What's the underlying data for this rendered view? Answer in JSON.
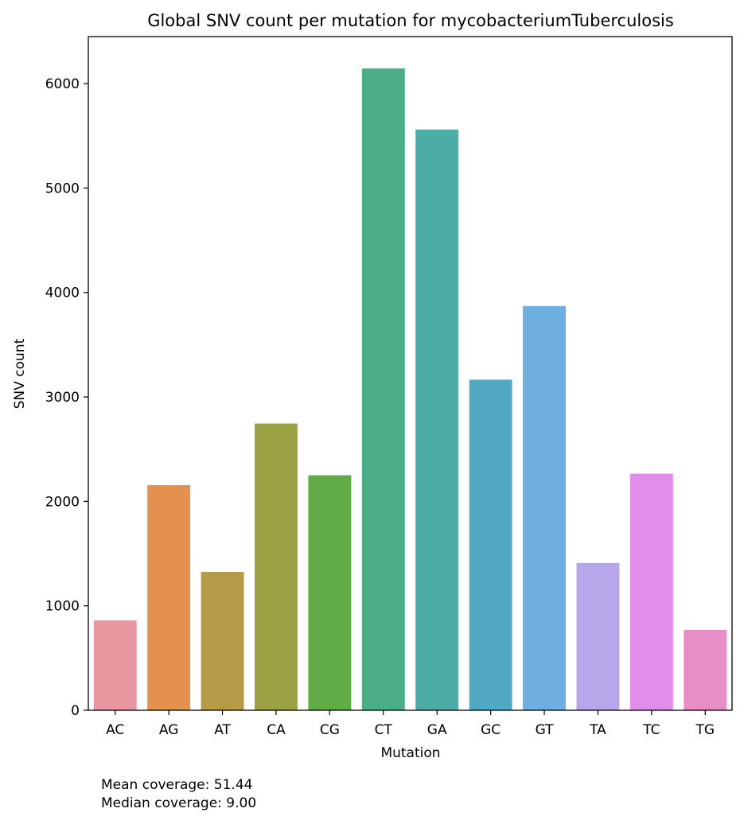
{
  "chart_data": {
    "type": "bar",
    "title": "Global SNV count per mutation for mycobacteriumTuberculosis",
    "xlabel": "Mutation",
    "ylabel": "SNV count",
    "categories": [
      "AC",
      "AG",
      "AT",
      "CA",
      "CG",
      "CT",
      "GA",
      "GC",
      "GT",
      "TA",
      "TC",
      "TG"
    ],
    "values": [
      860,
      2155,
      1325,
      2745,
      2250,
      6145,
      5560,
      3165,
      3870,
      1410,
      2265,
      770
    ],
    "colors": [
      "#e8969f",
      "#e4914f",
      "#b59a48",
      "#9ba345",
      "#62ac47",
      "#4bae88",
      "#4cada6",
      "#50a8c1",
      "#6eaee1",
      "#b7a7ea",
      "#e08ee9",
      "#e78ec6"
    ],
    "ylim": [
      0,
      6450
    ],
    "yticks": [
      0,
      1000,
      2000,
      3000,
      4000,
      5000,
      6000
    ],
    "grid": false,
    "legend": "none"
  },
  "footnote": {
    "mean": "Mean coverage: 51.44",
    "median": "Median coverage: 9.00"
  }
}
